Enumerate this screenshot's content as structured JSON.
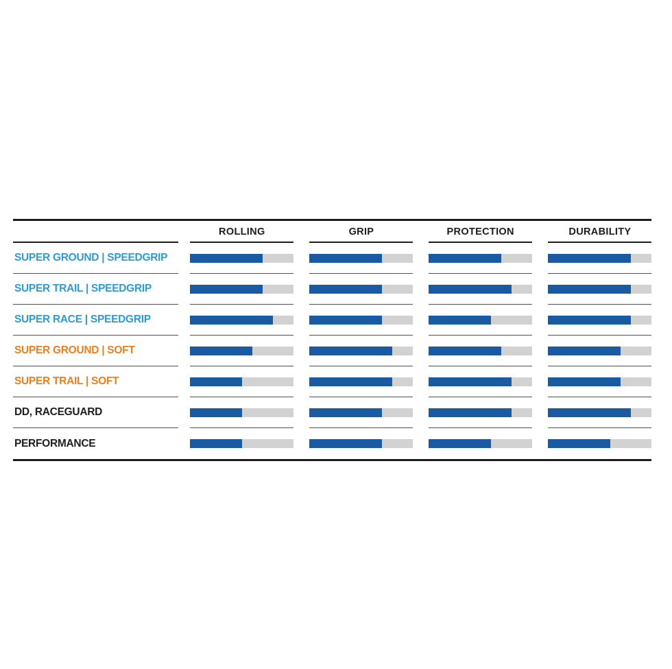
{
  "page": {
    "background": "#FFFFFF"
  },
  "colors": {
    "bar_fill": "#1A5AA2",
    "bar_track": "#D2D2D2",
    "label_blue": "#2E9AD2",
    "label_orange": "#EE7D1C",
    "label_black": "#1D1D1B",
    "rule_strong": "#1C1C1C",
    "rule_light": "#4F4F4F"
  },
  "table": {
    "columns": [
      "ROLLING",
      "GRIP",
      "PROTECTION",
      "DURABILITY"
    ],
    "rows": [
      {
        "label": "SUPER GROUND | SPEEDGRIP",
        "color_key": "label_blue",
        "ratings": [
          70,
          70,
          70,
          80
        ]
      },
      {
        "label": "SUPER TRAIL | SPEEDGRIP",
        "color_key": "label_blue",
        "ratings": [
          70,
          70,
          80,
          80
        ]
      },
      {
        "label": "SUPER RACE | SPEEDGRIP",
        "color_key": "label_blue",
        "ratings": [
          80,
          70,
          60,
          80
        ]
      },
      {
        "label": "SUPER GROUND | SOFT",
        "color_key": "label_orange",
        "ratings": [
          60,
          80,
          70,
          70
        ]
      },
      {
        "label": "SUPER TRAIL | SOFT",
        "color_key": "label_orange",
        "ratings": [
          50,
          80,
          80,
          70
        ]
      },
      {
        "label": "DD, RACEGUARD",
        "color_key": "label_black",
        "ratings": [
          50,
          70,
          80,
          80
        ]
      },
      {
        "label": "PERFORMANCE",
        "color_key": "label_black",
        "ratings": [
          50,
          70,
          60,
          60
        ]
      }
    ]
  },
  "chart_data": {
    "type": "bar",
    "orientation": "horizontal",
    "categories": [
      "ROLLING",
      "GRIP",
      "PROTECTION",
      "DURABILITY"
    ],
    "series": [
      {
        "name": "SUPER GROUND | SPEEDGRIP",
        "values": [
          0.7,
          0.7,
          0.7,
          0.8
        ]
      },
      {
        "name": "SUPER TRAIL | SPEEDGRIP",
        "values": [
          0.7,
          0.7,
          0.8,
          0.8
        ]
      },
      {
        "name": "SUPER RACE | SPEEDGRIP",
        "values": [
          0.8,
          0.7,
          0.6,
          0.8
        ]
      },
      {
        "name": "SUPER GROUND | SOFT",
        "values": [
          0.6,
          0.8,
          0.7,
          0.7
        ]
      },
      {
        "name": "SUPER TRAIL | SOFT",
        "values": [
          0.5,
          0.8,
          0.8,
          0.7
        ]
      },
      {
        "name": "DD, RACEGUARD",
        "values": [
          0.5,
          0.7,
          0.8,
          0.8
        ]
      },
      {
        "name": "PERFORMANCE",
        "values": [
          0.5,
          0.7,
          0.6,
          0.6
        ]
      }
    ],
    "value_range": [
      0,
      1
    ],
    "title": "",
    "xlabel": "",
    "ylabel": "",
    "grid": false,
    "legend_position": "none"
  }
}
